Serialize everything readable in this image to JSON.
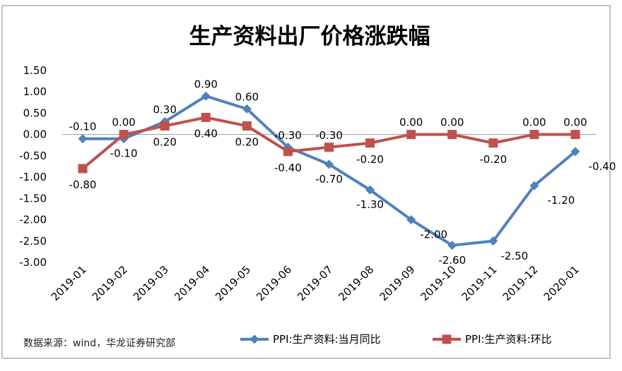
{
  "chart_data": {
    "type": "line",
    "title": "生产资料出厂价格涨跌幅",
    "source": "数据来源：wind，华龙证券研究部",
    "categories": [
      "2019-01",
      "2019-02",
      "2019-03",
      "2019-04",
      "2019-05",
      "2019-06",
      "2019-07",
      "2019-08",
      "2019-09",
      "2019-10",
      "2019-11",
      "2019-12",
      "2020-01"
    ],
    "y_ticks": [
      "1.50",
      "1.00",
      "0.50",
      "0.00",
      "-0.50",
      "-1.00",
      "-1.50",
      "-2.00",
      "-2.50",
      "-3.00"
    ],
    "ylim": [
      -3.0,
      1.5
    ],
    "grid": false,
    "legend_position": "bottom",
    "series": [
      {
        "name": "PPI:生产资料:当月同比",
        "color": "#4f81bd",
        "marker": "diamond",
        "values": [
          -0.1,
          -0.1,
          0.3,
          0.9,
          0.6,
          -0.3,
          -0.7,
          -1.3,
          -2.0,
          -2.6,
          -2.5,
          -1.2,
          -0.4
        ],
        "labels": [
          "-0.10",
          "-0.10",
          "0.30",
          "0.90",
          "0.60",
          "-0.30",
          "-0.70",
          "-1.30",
          "-2.00",
          "-2.60",
          "-2.50",
          "-1.20",
          "-0.40"
        ]
      },
      {
        "name": "PPI:生产资料:环比",
        "color": "#c0504d",
        "marker": "square",
        "values": [
          -0.8,
          0.0,
          0.2,
          0.4,
          0.2,
          -0.4,
          -0.3,
          -0.2,
          0.0,
          0.0,
          -0.2,
          0.0,
          0.0
        ],
        "labels": [
          "-0.80",
          "0.00",
          "0.20",
          "0.40",
          "0.20",
          "-0.40",
          "-0.30",
          "-0.20",
          "0.00",
          "0.00",
          "-0.20",
          "0.00",
          "0.00"
        ]
      }
    ]
  }
}
